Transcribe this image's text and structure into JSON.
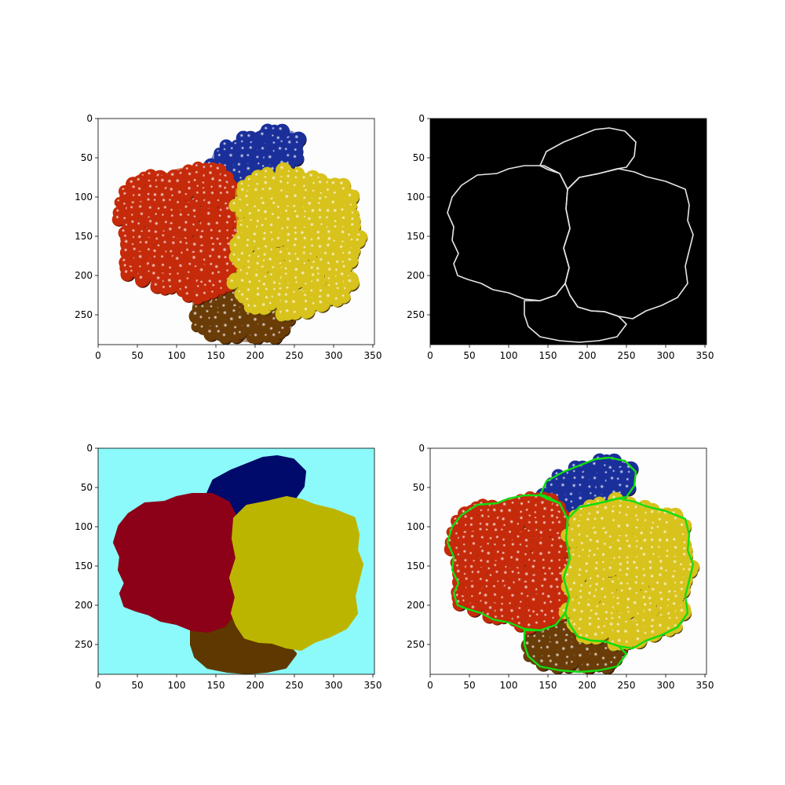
{
  "figure": {
    "layout": "2x2 image grid",
    "colors": {
      "image_background_white": "#fdfdfd",
      "edges_background": "#000000",
      "edge_line": "#e6e6e6",
      "label_background": "#8cfafa",
      "label_red": "#8c0018",
      "label_yellow": "#bcb500",
      "label_blue": "#000a6a",
      "label_brown": "#5e3800",
      "contour_green": "#11dd11",
      "sphere_red": "#c52a0a",
      "sphere_yellow": "#d8c21c",
      "sphere_blue": "#1a2f9a",
      "sphere_brown": "#6a3c08"
    }
  },
  "chart_data": [
    {
      "type": "image",
      "panel": "original",
      "description_of_content": "sphere cluster photo",
      "xlim": [
        0,
        352
      ],
      "ylim": [
        288,
        0
      ],
      "x_ticks": [
        "0",
        "50",
        "100",
        "150",
        "200",
        "250",
        "300",
        "350"
      ],
      "y_ticks": [
        "0",
        "50",
        "100",
        "150",
        "200",
        "250"
      ],
      "regions": [
        "red spheres",
        "yellow spheres",
        "blue spheres",
        "brown spheres"
      ]
    },
    {
      "type": "image",
      "panel": "edges",
      "xlim": [
        0,
        352
      ],
      "ylim": [
        288,
        0
      ],
      "x_ticks": [
        "0",
        "50",
        "100",
        "150",
        "200",
        "250",
        "300",
        "350"
      ],
      "y_ticks": [
        "0",
        "50",
        "100",
        "150",
        "200",
        "250"
      ]
    },
    {
      "type": "image",
      "panel": "labels",
      "xlim": [
        0,
        352
      ],
      "ylim": [
        288,
        0
      ],
      "x_ticks": [
        "0",
        "50",
        "100",
        "150",
        "200",
        "250",
        "300",
        "350"
      ],
      "y_ticks": [
        "0",
        "50",
        "100",
        "150",
        "200",
        "250"
      ]
    },
    {
      "type": "image",
      "panel": "overlay",
      "xlim": [
        0,
        352
      ],
      "ylim": [
        288,
        0
      ],
      "x_ticks": [
        "0",
        "50",
        "100",
        "150",
        "200",
        "250",
        "300",
        "350"
      ],
      "y_ticks": [
        "0",
        "50",
        "100",
        "150",
        "200",
        "250"
      ]
    }
  ]
}
